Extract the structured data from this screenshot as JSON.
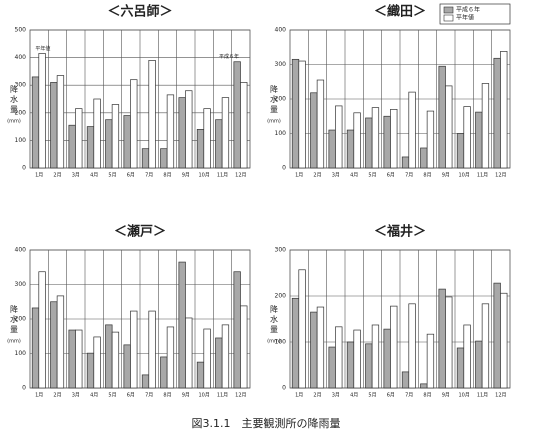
{
  "chart_data": [
    {
      "type": "bar",
      "title": "＜六呂師＞",
      "ylabel": "降水量",
      "yunit": "(mm)",
      "categories": [
        "1月",
        "2月",
        "3月",
        "4月",
        "5月",
        "6月",
        "7月",
        "8月",
        "9月",
        "10月",
        "11月",
        "12月"
      ],
      "series": [
        {
          "name": "平成６年",
          "color": "#a8a8a8",
          "values": [
            330,
            310,
            155,
            150,
            175,
            190,
            70,
            70,
            255,
            140,
            175,
            385
          ]
        },
        {
          "name": "平年値",
          "color": "#ffffff",
          "values": [
            415,
            335,
            215,
            250,
            230,
            320,
            390,
            265,
            280,
            215,
            255,
            310
          ]
        }
      ],
      "ylim": [
        0,
        500
      ],
      "yticks": [
        0,
        100,
        200,
        300,
        400,
        500
      ],
      "grid": true,
      "annotations": [
        "平年値",
        "平成６年"
      ]
    },
    {
      "type": "bar",
      "title": "＜織田＞",
      "ylabel": "降水量",
      "yunit": "(mm)",
      "categories": [
        "1月",
        "2月",
        "3月",
        "4月",
        "5月",
        "6月",
        "7月",
        "8月",
        "9月",
        "10月",
        "11月",
        "12月"
      ],
      "series": [
        {
          "name": "平成６年",
          "color": "#a8a8a8",
          "values": [
            315,
            218,
            110,
            110,
            145,
            150,
            32,
            58,
            295,
            100,
            162,
            318
          ]
        },
        {
          "name": "平年値",
          "color": "#ffffff",
          "values": [
            310,
            255,
            180,
            160,
            175,
            170,
            220,
            165,
            238,
            178,
            245,
            338
          ]
        }
      ],
      "ylim": [
        0,
        400
      ],
      "yticks": [
        0,
        100,
        200,
        300,
        400
      ],
      "grid": true,
      "legend": "top-right"
    },
    {
      "type": "bar",
      "title": "＜瀬戸＞",
      "ylabel": "降水量",
      "yunit": "(mm)",
      "categories": [
        "1月",
        "2月",
        "3月",
        "4月",
        "5月",
        "6月",
        "7月",
        "8月",
        "9月",
        "10月",
        "11月",
        "12月"
      ],
      "series": [
        {
          "name": "平成６年",
          "color": "#a8a8a8",
          "values": [
            232,
            250,
            168,
            101,
            183,
            125,
            38,
            90,
            365,
            75,
            145,
            337
          ]
        },
        {
          "name": "平年値",
          "color": "#ffffff",
          "values": [
            337,
            267,
            168,
            148,
            162,
            223,
            223,
            177,
            203,
            171,
            183,
            238
          ]
        }
      ],
      "ylim": [
        0,
        400
      ],
      "yticks": [
        0,
        100,
        200,
        300,
        400
      ],
      "grid": true
    },
    {
      "type": "bar",
      "title": "＜福井＞",
      "ylabel": "降水量",
      "yunit": "(mm)",
      "categories": [
        "1月",
        "2月",
        "3月",
        "4月",
        "5月",
        "6月",
        "7月",
        "8月",
        "9月",
        "10月",
        "11月",
        "12月"
      ],
      "series": [
        {
          "name": "平成６年",
          "color": "#a8a8a8",
          "values": [
            195,
            165,
            89,
            100,
            96,
            128,
            35,
            9,
            215,
            87,
            102,
            228
          ]
        },
        {
          "name": "平年値",
          "color": "#ffffff",
          "values": [
            257,
            176,
            133,
            126,
            137,
            178,
            183,
            117,
            198,
            137,
            183,
            206
          ]
        }
      ],
      "ylim": [
        0,
        300
      ],
      "yticks": [
        0,
        100,
        200,
        300
      ],
      "grid": true
    }
  ],
  "caption": "図3.1.1　主要観測所の降雨量"
}
